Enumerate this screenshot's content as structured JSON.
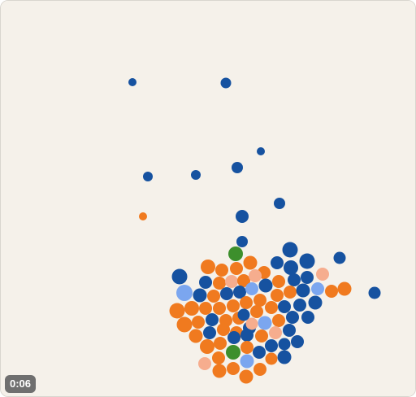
{
  "player": {
    "time_label": "0:06",
    "background_color": "#f5f1ea"
  },
  "palette": {
    "dark_blue": "#1652a0",
    "light_blue": "#7ba6ef",
    "orange": "#f07a1f",
    "peach": "#f6ad8e",
    "green": "#3d8f2c"
  }
}
